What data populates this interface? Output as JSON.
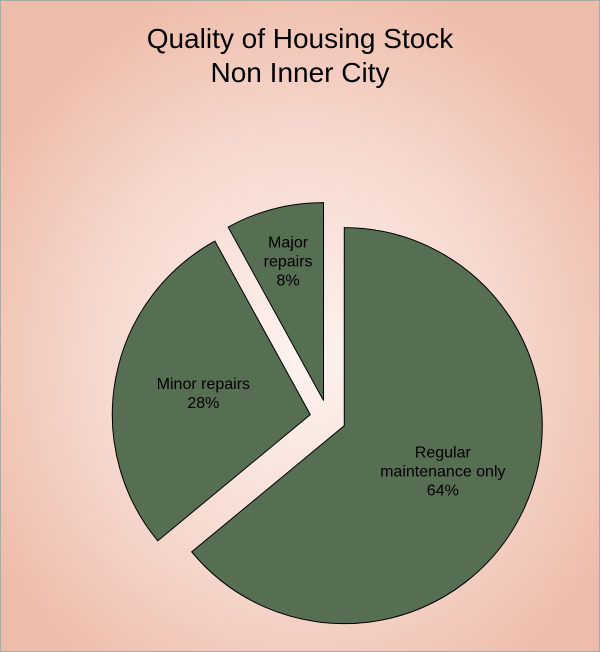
{
  "chart_data": {
    "type": "pie",
    "title": "Quality of Housing Stock",
    "subtitle": "Non Inner City",
    "categories": [
      "Regular maintenance only",
      "Minor repairs",
      "Major repairs"
    ],
    "values": [
      64,
      28,
      8
    ],
    "value_labels": [
      "64%",
      "28%",
      "8%"
    ],
    "color": "#566e52"
  }
}
